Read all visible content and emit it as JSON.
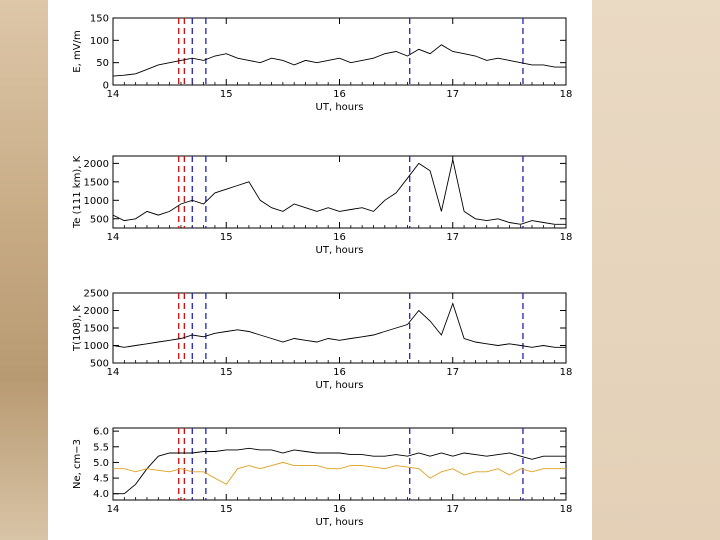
{
  "colors": {
    "background": "#e6d5bf",
    "panel": "#ffffff",
    "trace": "#000000",
    "trace_secondary": "#e0a020",
    "marker_red": "#d01010",
    "marker_blue": "#2020c0"
  },
  "chart_data": [
    {
      "type": "line",
      "xlabel": "UT, hours",
      "ylabel": "E, mV/m",
      "xlim": [
        14,
        18
      ],
      "ylim": [
        0,
        150
      ],
      "xticks": [
        "14",
        "15",
        "16",
        "17",
        "18"
      ],
      "yticks": [
        "0",
        "50",
        "100",
        "150"
      ],
      "grid": false,
      "markers": [
        {
          "x": 14.58,
          "color": "red"
        },
        {
          "x": 14.63,
          "color": "red"
        },
        {
          "x": 14.7,
          "color": "blue"
        },
        {
          "x": 14.82,
          "color": "blue"
        },
        {
          "x": 16.62,
          "color": "blue"
        },
        {
          "x": 17.62,
          "color": "blue"
        }
      ],
      "series": [
        {
          "x": [
            14.0,
            14.1,
            14.2,
            14.3,
            14.4,
            14.5,
            14.6,
            14.7,
            14.8,
            14.9,
            15.0,
            15.1,
            15.2,
            15.3,
            15.4,
            15.5,
            15.6,
            15.7,
            15.8,
            15.9,
            16.0,
            16.1,
            16.2,
            16.3,
            16.4,
            16.5,
            16.6,
            16.7,
            16.8,
            16.9,
            17.0,
            17.1,
            17.2,
            17.3,
            17.4,
            17.5,
            17.6,
            17.7,
            17.8,
            17.9,
            18.0
          ],
          "y": [
            20,
            22,
            25,
            35,
            45,
            50,
            55,
            60,
            55,
            65,
            70,
            60,
            55,
            50,
            60,
            55,
            45,
            55,
            50,
            55,
            60,
            50,
            55,
            60,
            70,
            75,
            65,
            80,
            70,
            90,
            75,
            70,
            65,
            55,
            60,
            55,
            50,
            45,
            45,
            40,
            40
          ]
        }
      ]
    },
    {
      "type": "line",
      "xlabel": "UT, hours",
      "ylabel": "Te (111 km), K",
      "xlim": [
        14,
        18
      ],
      "ylim": [
        250,
        2200
      ],
      "xticks": [
        "14",
        "15",
        "16",
        "17",
        "18"
      ],
      "yticks": [
        "500",
        "1000",
        "1500",
        "2000"
      ],
      "grid": false,
      "markers": [
        {
          "x": 14.58,
          "color": "red"
        },
        {
          "x": 14.63,
          "color": "red"
        },
        {
          "x": 14.7,
          "color": "blue"
        },
        {
          "x": 14.82,
          "color": "blue"
        },
        {
          "x": 16.62,
          "color": "blue"
        },
        {
          "x": 17.62,
          "color": "blue"
        }
      ],
      "series": [
        {
          "x": [
            14.0,
            14.1,
            14.2,
            14.3,
            14.4,
            14.5,
            14.6,
            14.7,
            14.8,
            14.9,
            15.0,
            15.1,
            15.2,
            15.3,
            15.4,
            15.5,
            15.6,
            15.7,
            15.8,
            15.9,
            16.0,
            16.1,
            16.2,
            16.3,
            16.4,
            16.5,
            16.6,
            16.7,
            16.8,
            16.9,
            17.0,
            17.1,
            17.2,
            17.3,
            17.4,
            17.5,
            17.6,
            17.7,
            17.8,
            17.9,
            18.0
          ],
          "y": [
            600,
            450,
            500,
            700,
            600,
            700,
            900,
            1000,
            900,
            1200,
            1300,
            1400,
            1500,
            1000,
            800,
            700,
            900,
            800,
            700,
            800,
            700,
            750,
            800,
            700,
            1000,
            1200,
            1600,
            2000,
            1800,
            700,
            2100,
            700,
            500,
            450,
            500,
            400,
            350,
            450,
            400,
            350,
            350
          ]
        }
      ]
    },
    {
      "type": "line",
      "xlabel": "UT, hours",
      "ylabel": "T(108), K",
      "xlim": [
        14,
        18
      ],
      "ylim": [
        500,
        2500
      ],
      "xticks": [
        "14",
        "15",
        "16",
        "17",
        "18"
      ],
      "yticks": [
        "500",
        "1000",
        "1500",
        "2000",
        "2500"
      ],
      "grid": false,
      "markers": [
        {
          "x": 14.58,
          "color": "red"
        },
        {
          "x": 14.63,
          "color": "red"
        },
        {
          "x": 14.7,
          "color": "blue"
        },
        {
          "x": 14.82,
          "color": "blue"
        },
        {
          "x": 16.62,
          "color": "blue"
        },
        {
          "x": 17.62,
          "color": "blue"
        }
      ],
      "series": [
        {
          "x": [
            14.0,
            14.1,
            14.2,
            14.3,
            14.4,
            14.5,
            14.6,
            14.7,
            14.8,
            14.9,
            15.0,
            15.1,
            15.2,
            15.3,
            15.4,
            15.5,
            15.6,
            15.7,
            15.8,
            15.9,
            16.0,
            16.1,
            16.2,
            16.3,
            16.4,
            16.5,
            16.6,
            16.7,
            16.8,
            16.9,
            17.0,
            17.1,
            17.2,
            17.3,
            17.4,
            17.5,
            17.6,
            17.7,
            17.8,
            17.9,
            18.0
          ],
          "y": [
            1000,
            950,
            1000,
            1050,
            1100,
            1150,
            1200,
            1300,
            1250,
            1350,
            1400,
            1450,
            1400,
            1300,
            1200,
            1100,
            1200,
            1150,
            1100,
            1200,
            1150,
            1200,
            1250,
            1300,
            1400,
            1500,
            1600,
            2000,
            1700,
            1300,
            2200,
            1200,
            1100,
            1050,
            1000,
            1050,
            1000,
            950,
            1000,
            950,
            950
          ]
        }
      ]
    },
    {
      "type": "line",
      "xlabel": "UT, hours",
      "ylabel": "Ne, cm−3",
      "xlim": [
        14,
        18
      ],
      "ylim": [
        3.8,
        6.1
      ],
      "xticks": [
        "14",
        "15",
        "16",
        "17",
        "18"
      ],
      "yticks": [
        "4.0",
        "4.5",
        "5.0",
        "5.5",
        "6.0"
      ],
      "grid": false,
      "markers": [
        {
          "x": 14.58,
          "color": "red"
        },
        {
          "x": 14.63,
          "color": "red"
        },
        {
          "x": 14.7,
          "color": "blue"
        },
        {
          "x": 14.82,
          "color": "blue"
        },
        {
          "x": 16.62,
          "color": "blue"
        },
        {
          "x": 17.62,
          "color": "blue"
        }
      ],
      "series": [
        {
          "color": "black",
          "x": [
            14.0,
            14.1,
            14.2,
            14.3,
            14.4,
            14.5,
            14.6,
            14.7,
            14.8,
            14.9,
            15.0,
            15.1,
            15.2,
            15.3,
            15.4,
            15.5,
            15.6,
            15.7,
            15.8,
            15.9,
            16.0,
            16.1,
            16.2,
            16.3,
            16.4,
            16.5,
            16.6,
            16.7,
            16.8,
            16.9,
            17.0,
            17.1,
            17.2,
            17.3,
            17.4,
            17.5,
            17.6,
            17.7,
            17.8,
            17.9,
            18.0
          ],
          "y": [
            4.0,
            4.0,
            4.3,
            4.8,
            5.2,
            5.3,
            5.3,
            5.3,
            5.35,
            5.35,
            5.4,
            5.4,
            5.45,
            5.4,
            5.4,
            5.3,
            5.4,
            5.35,
            5.3,
            5.3,
            5.3,
            5.25,
            5.25,
            5.2,
            5.2,
            5.25,
            5.2,
            5.3,
            5.2,
            5.3,
            5.2,
            5.3,
            5.25,
            5.2,
            5.25,
            5.3,
            5.2,
            5.1,
            5.2,
            5.2,
            5.2
          ]
        },
        {
          "color": "orange",
          "x": [
            14.0,
            14.1,
            14.2,
            14.3,
            14.4,
            14.5,
            14.6,
            14.7,
            14.8,
            14.9,
            15.0,
            15.1,
            15.2,
            15.3,
            15.4,
            15.5,
            15.6,
            15.7,
            15.8,
            15.9,
            16.0,
            16.1,
            16.2,
            16.3,
            16.4,
            16.5,
            16.6,
            16.7,
            16.8,
            16.9,
            17.0,
            17.1,
            17.2,
            17.3,
            17.4,
            17.5,
            17.6,
            17.7,
            17.8,
            17.9,
            18.0
          ],
          "y": [
            4.8,
            4.8,
            4.7,
            4.8,
            4.75,
            4.7,
            4.8,
            4.7,
            4.7,
            4.5,
            4.3,
            4.8,
            4.9,
            4.8,
            4.9,
            5.0,
            4.9,
            4.9,
            4.9,
            4.8,
            4.8,
            4.9,
            4.9,
            4.85,
            4.8,
            4.9,
            4.85,
            4.8,
            4.5,
            4.7,
            4.8,
            4.6,
            4.7,
            4.7,
            4.8,
            4.6,
            4.8,
            4.7,
            4.8,
            4.8,
            4.8
          ]
        }
      ]
    }
  ]
}
